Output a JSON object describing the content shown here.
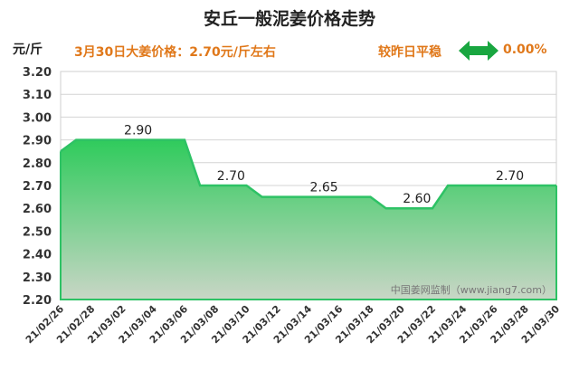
{
  "header": {
    "title": "安丘一般泥姜价格走势",
    "unit": "元/斤",
    "today_price": "3月30日大姜价格：2.70元/斤左右",
    "compare_label": "较昨日平稳",
    "compare_value": "0.00%",
    "compare_icon": "left-right-arrow-icon"
  },
  "watermark": "中国姜网监制（www.jiang7.com）",
  "colors": {
    "line": "#2ec265",
    "fill_top": "#2fcb5c",
    "fill_bottom": "#c9d6c6",
    "accent": "#e0781a",
    "arrow": "#19a640"
  },
  "chart_data": {
    "type": "area",
    "title": "安丘一般泥姜价格走势",
    "ylabel": "元/斤",
    "ylim": [
      2.2,
      3.2
    ],
    "yticks": [
      "3.20",
      "3.10",
      "3.00",
      "2.90",
      "2.80",
      "2.70",
      "2.60",
      "2.50",
      "2.40",
      "2.30",
      "2.20"
    ],
    "grid": true,
    "x": [
      "21/02/26",
      "21/02/27",
      "21/02/28",
      "21/03/01",
      "21/03/02",
      "21/03/03",
      "21/03/04",
      "21/03/05",
      "21/03/06",
      "21/03/07",
      "21/03/08",
      "21/03/09",
      "21/03/10",
      "21/03/11",
      "21/03/12",
      "21/03/13",
      "21/03/14",
      "21/03/15",
      "21/03/16",
      "21/03/17",
      "21/03/18",
      "21/03/19",
      "21/03/20",
      "21/03/21",
      "21/03/22",
      "21/03/23",
      "21/03/24",
      "21/03/25",
      "21/03/26",
      "21/03/27",
      "21/03/28",
      "21/03/29",
      "21/03/30"
    ],
    "xtick_labels": [
      "21/02/26",
      "21/02/28",
      "21/03/02",
      "21/03/04",
      "21/03/06",
      "21/03/08",
      "21/03/10",
      "21/03/12",
      "21/03/14",
      "21/03/16",
      "21/03/18",
      "21/03/20",
      "21/03/22",
      "21/03/24",
      "21/03/26",
      "21/03/28",
      "21/03/30"
    ],
    "values": [
      2.85,
      2.9,
      2.9,
      2.9,
      2.9,
      2.9,
      2.9,
      2.9,
      2.9,
      2.7,
      2.7,
      2.7,
      2.7,
      2.65,
      2.65,
      2.65,
      2.65,
      2.65,
      2.65,
      2.65,
      2.65,
      2.6,
      2.6,
      2.6,
      2.6,
      2.7,
      2.7,
      2.7,
      2.7,
      2.7,
      2.7,
      2.7,
      2.7
    ],
    "annotations": [
      {
        "text": "2.90",
        "x": "21/03/03",
        "y": 2.9
      },
      {
        "text": "2.70",
        "x": "21/03/09",
        "y": 2.7
      },
      {
        "text": "2.65",
        "x": "21/03/15",
        "y": 2.65
      },
      {
        "text": "2.60",
        "x": "21/03/21",
        "y": 2.6
      },
      {
        "text": "2.70",
        "x": "21/03/27",
        "y": 2.7
      }
    ]
  }
}
